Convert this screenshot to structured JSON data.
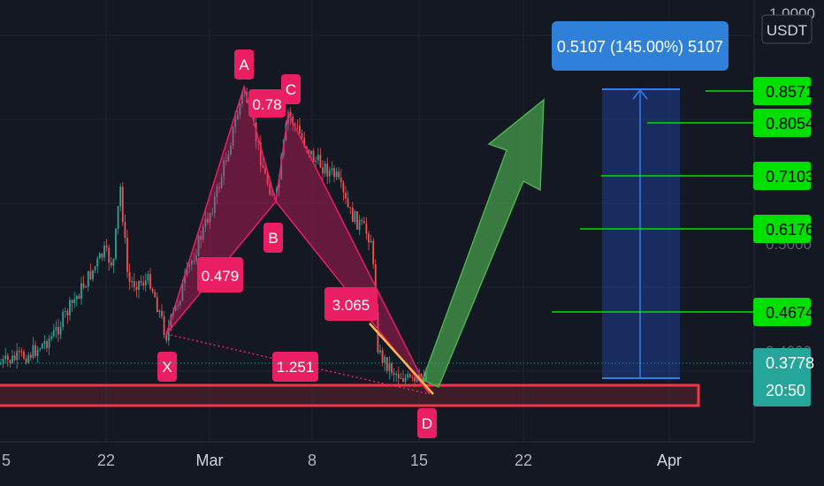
{
  "header": {
    "currency_label": "USDT",
    "price_top_partial": "1.0000"
  },
  "x_axis": {
    "ticks": [
      "5",
      "22",
      "Mar",
      "8",
      "15",
      "22",
      "Apr"
    ]
  },
  "harmonic_pattern": {
    "points": [
      "X",
      "A",
      "B",
      "C",
      "D"
    ],
    "ratios": {
      "ab": "0.78",
      "xb": "0.479",
      "bd": "3.065",
      "xd": "1.251"
    }
  },
  "projection": {
    "label": "0.5107 (145.00%) 5107"
  },
  "price_labels": [
    {
      "name": "level-1",
      "text": "0.8571",
      "color": "#00e000"
    },
    {
      "name": "level-2",
      "text": "0.8054",
      "color": "#00e000"
    },
    {
      "name": "level-3",
      "text": "0.7103",
      "color": "#00e000"
    },
    {
      "name": "level-4",
      "text": "0.6176",
      "color": "#00e000"
    },
    {
      "name": "level-5",
      "text": "0.4674",
      "color": "#00e000"
    }
  ],
  "current_price": {
    "price": "0.3778",
    "countdown": "20:50",
    "color": "#26a69a"
  },
  "colors": {
    "background": "#141823",
    "pattern_fill": "#e91e63",
    "up_candle": "#26a69a",
    "down_candle": "#ef5350",
    "support_zone": "#f23645",
    "target_box": "#2962ff",
    "arrow": "#4caf50"
  },
  "chart_data": {
    "type": "candlestick",
    "x_ticks": [
      "5",
      "22",
      "Mar",
      "8",
      "15",
      "22",
      "Apr"
    ],
    "y_levels": [
      0.8571,
      0.8054,
      0.7103,
      0.6176,
      0.4674
    ],
    "current_price": 0.3778,
    "pattern": {
      "type": "bat",
      "ratios": {
        "AB": 0.78,
        "XB": 0.479,
        "BD": 3.065,
        "XD": 1.251
      }
    },
    "target_move": {
      "change": 0.5107,
      "percent": 145.0
    }
  }
}
